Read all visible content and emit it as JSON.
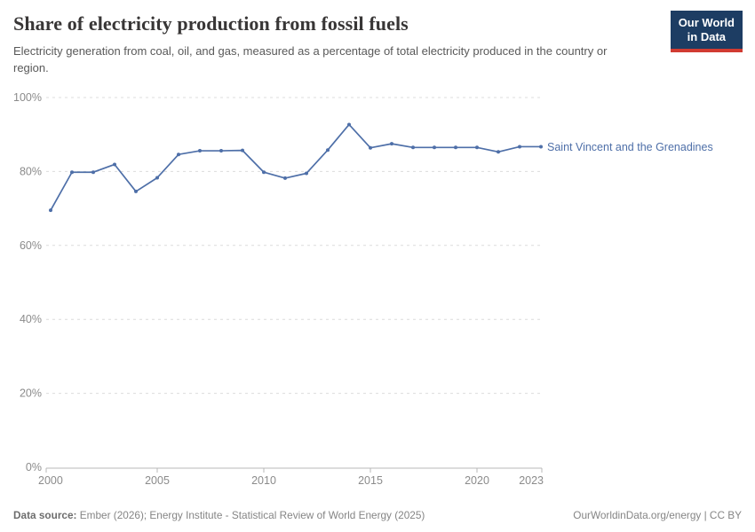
{
  "header": {
    "title": "Share of electricity production from fossil fuels",
    "subtitle": "Electricity generation from coal, oil, and gas, measured as a percentage of total electricity produced in the country or region."
  },
  "logo": {
    "line1": "Our World",
    "line2": "in Data",
    "bg_color": "#1d3d63",
    "accent_color": "#d13b32"
  },
  "chart_data": {
    "type": "line",
    "title": "Share of electricity production from fossil fuels",
    "xlabel": "",
    "ylabel": "",
    "xlim": [
      2000,
      2023
    ],
    "ylim": [
      0,
      100
    ],
    "xticks": [
      2000,
      2005,
      2010,
      2015,
      2020,
      2023
    ],
    "yticks": [
      0,
      20,
      40,
      60,
      80,
      100
    ],
    "ytick_suffix": "%",
    "grid": "horizontal-dashed",
    "legend_position": "right-of-line-end",
    "series": [
      {
        "name": "Saint Vincent and the Grenadines",
        "color": "#4e6fa8",
        "x": [
          2000,
          2001,
          2002,
          2003,
          2004,
          2005,
          2006,
          2007,
          2008,
          2009,
          2010,
          2011,
          2012,
          2013,
          2014,
          2015,
          2016,
          2017,
          2018,
          2019,
          2020,
          2021,
          2022,
          2023
        ],
        "values": [
          69.5,
          79.8,
          79.8,
          81.9,
          74.6,
          78.3,
          84.6,
          85.6,
          85.6,
          85.7,
          79.8,
          78.2,
          79.5,
          85.8,
          92.7,
          86.4,
          87.5,
          86.5,
          86.5,
          86.5,
          86.5,
          85.3,
          86.7,
          86.7
        ]
      }
    ],
    "colors": {
      "gridline": "#dcdcdc",
      "axis": "#b8b8b8",
      "tick_label": "#8b8b8b"
    }
  },
  "footer": {
    "datasource_label": "Data source:",
    "datasource_text": " Ember (2026); Energy Institute - Statistical Review of World Energy (2025)",
    "attribution": "OurWorldinData.org/energy | CC BY"
  }
}
